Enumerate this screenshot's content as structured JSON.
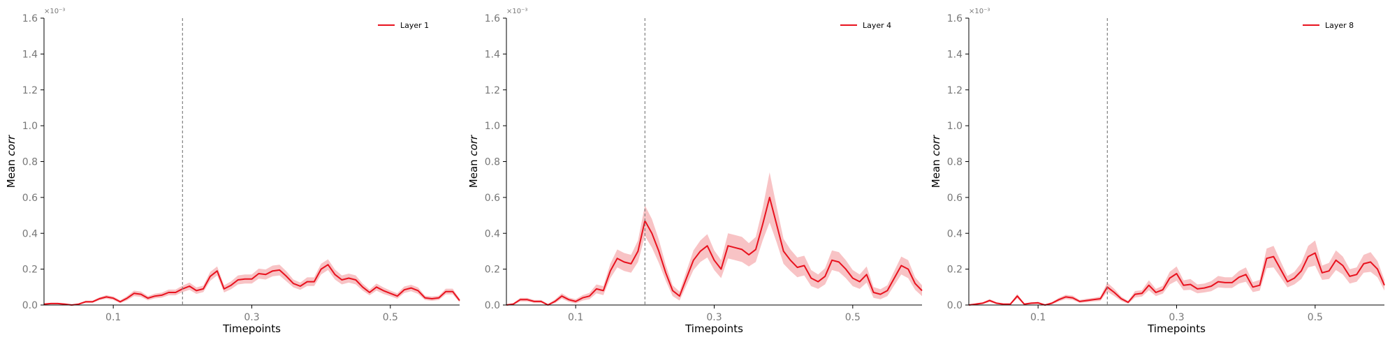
{
  "chart_data": [
    {
      "type": "line",
      "xlabel": "Timepoints",
      "ylabel_prefix": "Mean ",
      "ylabel_italic": "corr",
      "exponent_label": "×10⁻³",
      "xlim": [
        0.0,
        0.6
      ],
      "ylim": [
        0.0,
        1.6
      ],
      "xticks": [
        "0.1",
        "0.3",
        "0.5"
      ],
      "xtick_values": [
        0.1,
        0.3,
        0.5
      ],
      "yticks": [
        "0.0",
        "0.2",
        "0.4",
        "0.6",
        "0.8",
        "1.0",
        "1.2",
        "1.4",
        "1.6"
      ],
      "vline_x": 0.2,
      "legend_position": "top-right",
      "color": "#e8121e",
      "band_color": "#f5a3a6",
      "series": [
        {
          "name": "Layer 1",
          "x": [
            0.0,
            0.01,
            0.02,
            0.03,
            0.04,
            0.05,
            0.06,
            0.07,
            0.08,
            0.09,
            0.1,
            0.11,
            0.12,
            0.13,
            0.14,
            0.15,
            0.16,
            0.17,
            0.18,
            0.19,
            0.2,
            0.21,
            0.22,
            0.23,
            0.24,
            0.25,
            0.26,
            0.27,
            0.28,
            0.29,
            0.3,
            0.31,
            0.32,
            0.33,
            0.34,
            0.35,
            0.36,
            0.37,
            0.38,
            0.39,
            0.4,
            0.41,
            0.42,
            0.43,
            0.44,
            0.45,
            0.46,
            0.47,
            0.48,
            0.49,
            0.5,
            0.51,
            0.52,
            0.53,
            0.54,
            0.55,
            0.56,
            0.57,
            0.58,
            0.59,
            0.6
          ],
          "y": [
            0.005,
            0.008,
            0.008,
            0.005,
            0.0,
            0.005,
            0.018,
            0.018,
            0.035,
            0.045,
            0.038,
            0.018,
            0.038,
            0.065,
            0.06,
            0.038,
            0.05,
            0.055,
            0.07,
            0.07,
            0.09,
            0.105,
            0.08,
            0.09,
            0.16,
            0.19,
            0.09,
            0.11,
            0.14,
            0.145,
            0.145,
            0.175,
            0.17,
            0.19,
            0.195,
            0.16,
            0.12,
            0.105,
            0.13,
            0.13,
            0.2,
            0.225,
            0.17,
            0.14,
            0.15,
            0.14,
            0.1,
            0.07,
            0.1,
            0.08,
            0.065,
            0.05,
            0.085,
            0.095,
            0.08,
            0.04,
            0.035,
            0.04,
            0.075,
            0.075,
            0.025
          ],
          "ci": [
            0.003,
            0.004,
            0.004,
            0.003,
            0.002,
            0.004,
            0.006,
            0.006,
            0.008,
            0.01,
            0.01,
            0.008,
            0.012,
            0.015,
            0.015,
            0.012,
            0.013,
            0.014,
            0.016,
            0.016,
            0.018,
            0.02,
            0.018,
            0.018,
            0.025,
            0.025,
            0.02,
            0.022,
            0.025,
            0.025,
            0.025,
            0.028,
            0.028,
            0.03,
            0.03,
            0.028,
            0.022,
            0.02,
            0.024,
            0.024,
            0.03,
            0.03,
            0.028,
            0.025,
            0.025,
            0.025,
            0.02,
            0.016,
            0.02,
            0.018,
            0.016,
            0.015,
            0.018,
            0.018,
            0.018,
            0.012,
            0.012,
            0.012,
            0.016,
            0.016,
            0.01
          ]
        }
      ]
    },
    {
      "type": "line",
      "xlabel": "Timepoints",
      "ylabel_prefix": "Mean ",
      "ylabel_italic": "corr",
      "exponent_label": "×10⁻³",
      "xlim": [
        0.0,
        0.6
      ],
      "ylim": [
        0.0,
        1.6
      ],
      "xticks": [
        "0.1",
        "0.3",
        "0.5"
      ],
      "xtick_values": [
        0.1,
        0.3,
        0.5
      ],
      "yticks": [
        "0.0",
        "0.2",
        "0.4",
        "0.6",
        "0.8",
        "1.0",
        "1.2",
        "1.4",
        "1.6"
      ],
      "vline_x": 0.2,
      "legend_position": "top-right",
      "color": "#e8121e",
      "band_color": "#f5a3a6",
      "series": [
        {
          "name": "Layer 4",
          "x": [
            0.0,
            0.01,
            0.02,
            0.03,
            0.04,
            0.05,
            0.06,
            0.07,
            0.08,
            0.09,
            0.1,
            0.11,
            0.12,
            0.13,
            0.14,
            0.15,
            0.16,
            0.17,
            0.18,
            0.19,
            0.2,
            0.21,
            0.22,
            0.23,
            0.24,
            0.25,
            0.26,
            0.27,
            0.28,
            0.29,
            0.3,
            0.31,
            0.32,
            0.33,
            0.34,
            0.35,
            0.36,
            0.37,
            0.38,
            0.39,
            0.4,
            0.41,
            0.42,
            0.43,
            0.44,
            0.45,
            0.46,
            0.47,
            0.48,
            0.49,
            0.5,
            0.51,
            0.52,
            0.53,
            0.54,
            0.55,
            0.56,
            0.57,
            0.58,
            0.59,
            0.6
          ],
          "y": [
            0.0,
            0.005,
            0.03,
            0.03,
            0.02,
            0.02,
            0.0,
            0.02,
            0.05,
            0.03,
            0.02,
            0.04,
            0.05,
            0.09,
            0.08,
            0.19,
            0.26,
            0.24,
            0.23,
            0.3,
            0.47,
            0.4,
            0.3,
            0.18,
            0.08,
            0.05,
            0.15,
            0.25,
            0.3,
            0.33,
            0.25,
            0.2,
            0.33,
            0.32,
            0.31,
            0.28,
            0.31,
            0.45,
            0.6,
            0.45,
            0.3,
            0.25,
            0.21,
            0.22,
            0.15,
            0.13,
            0.16,
            0.25,
            0.24,
            0.2,
            0.15,
            0.13,
            0.17,
            0.07,
            0.06,
            0.08,
            0.15,
            0.22,
            0.2,
            0.12,
            0.08
          ],
          "ci": [
            0.005,
            0.006,
            0.01,
            0.01,
            0.008,
            0.008,
            0.006,
            0.01,
            0.015,
            0.012,
            0.012,
            0.015,
            0.018,
            0.025,
            0.025,
            0.04,
            0.05,
            0.05,
            0.05,
            0.06,
            0.085,
            0.08,
            0.065,
            0.045,
            0.03,
            0.025,
            0.04,
            0.055,
            0.06,
            0.065,
            0.055,
            0.05,
            0.07,
            0.07,
            0.07,
            0.065,
            0.07,
            0.09,
            0.14,
            0.1,
            0.07,
            0.06,
            0.055,
            0.055,
            0.045,
            0.04,
            0.045,
            0.055,
            0.055,
            0.05,
            0.045,
            0.04,
            0.045,
            0.03,
            0.028,
            0.03,
            0.04,
            0.05,
            0.05,
            0.035,
            0.03
          ]
        }
      ]
    },
    {
      "type": "line",
      "xlabel": "Timepoints",
      "ylabel_prefix": "Mean ",
      "ylabel_italic": "corr",
      "exponent_label": "×10⁻³",
      "xlim": [
        0.0,
        0.6
      ],
      "ylim": [
        0.0,
        1.6
      ],
      "xticks": [
        "0.1",
        "0.3",
        "0.5"
      ],
      "xtick_values": [
        0.1,
        0.3,
        0.5
      ],
      "yticks": [
        "0.0",
        "0.2",
        "0.4",
        "0.6",
        "0.8",
        "1.0",
        "1.2",
        "1.4",
        "1.6"
      ],
      "vline_x": 0.2,
      "legend_position": "top-right",
      "color": "#e8121e",
      "band_color": "#f5a3a6",
      "series": [
        {
          "name": "Layer 8",
          "x": [
            0.0,
            0.01,
            0.02,
            0.03,
            0.04,
            0.05,
            0.06,
            0.07,
            0.08,
            0.09,
            0.1,
            0.11,
            0.12,
            0.13,
            0.14,
            0.15,
            0.16,
            0.17,
            0.18,
            0.19,
            0.2,
            0.21,
            0.22,
            0.23,
            0.24,
            0.25,
            0.26,
            0.27,
            0.28,
            0.29,
            0.3,
            0.31,
            0.32,
            0.33,
            0.34,
            0.35,
            0.36,
            0.37,
            0.38,
            0.39,
            0.4,
            0.41,
            0.42,
            0.43,
            0.44,
            0.45,
            0.46,
            0.47,
            0.48,
            0.49,
            0.5,
            0.51,
            0.52,
            0.53,
            0.54,
            0.55,
            0.56,
            0.57,
            0.58,
            0.59,
            0.6
          ],
          "y": [
            0.0,
            0.005,
            0.01,
            0.025,
            0.01,
            0.005,
            0.005,
            0.05,
            0.005,
            0.01,
            0.012,
            0.0,
            0.01,
            0.03,
            0.045,
            0.04,
            0.02,
            0.025,
            0.03,
            0.035,
            0.1,
            0.07,
            0.035,
            0.015,
            0.06,
            0.065,
            0.11,
            0.07,
            0.085,
            0.15,
            0.175,
            0.11,
            0.115,
            0.09,
            0.095,
            0.105,
            0.13,
            0.125,
            0.125,
            0.155,
            0.17,
            0.1,
            0.11,
            0.26,
            0.27,
            0.2,
            0.13,
            0.15,
            0.19,
            0.27,
            0.29,
            0.18,
            0.19,
            0.25,
            0.22,
            0.16,
            0.17,
            0.23,
            0.24,
            0.2,
            0.11
          ],
          "ci": [
            0.003,
            0.004,
            0.005,
            0.008,
            0.005,
            0.004,
            0.004,
            0.012,
            0.004,
            0.005,
            0.006,
            0.003,
            0.006,
            0.01,
            0.012,
            0.012,
            0.008,
            0.01,
            0.01,
            0.012,
            0.025,
            0.02,
            0.012,
            0.008,
            0.018,
            0.018,
            0.028,
            0.02,
            0.022,
            0.035,
            0.04,
            0.028,
            0.03,
            0.025,
            0.025,
            0.028,
            0.032,
            0.03,
            0.03,
            0.035,
            0.04,
            0.028,
            0.03,
            0.055,
            0.06,
            0.045,
            0.032,
            0.035,
            0.045,
            0.06,
            0.07,
            0.04,
            0.045,
            0.055,
            0.05,
            0.04,
            0.04,
            0.05,
            0.055,
            0.045,
            0.03
          ]
        }
      ]
    }
  ]
}
